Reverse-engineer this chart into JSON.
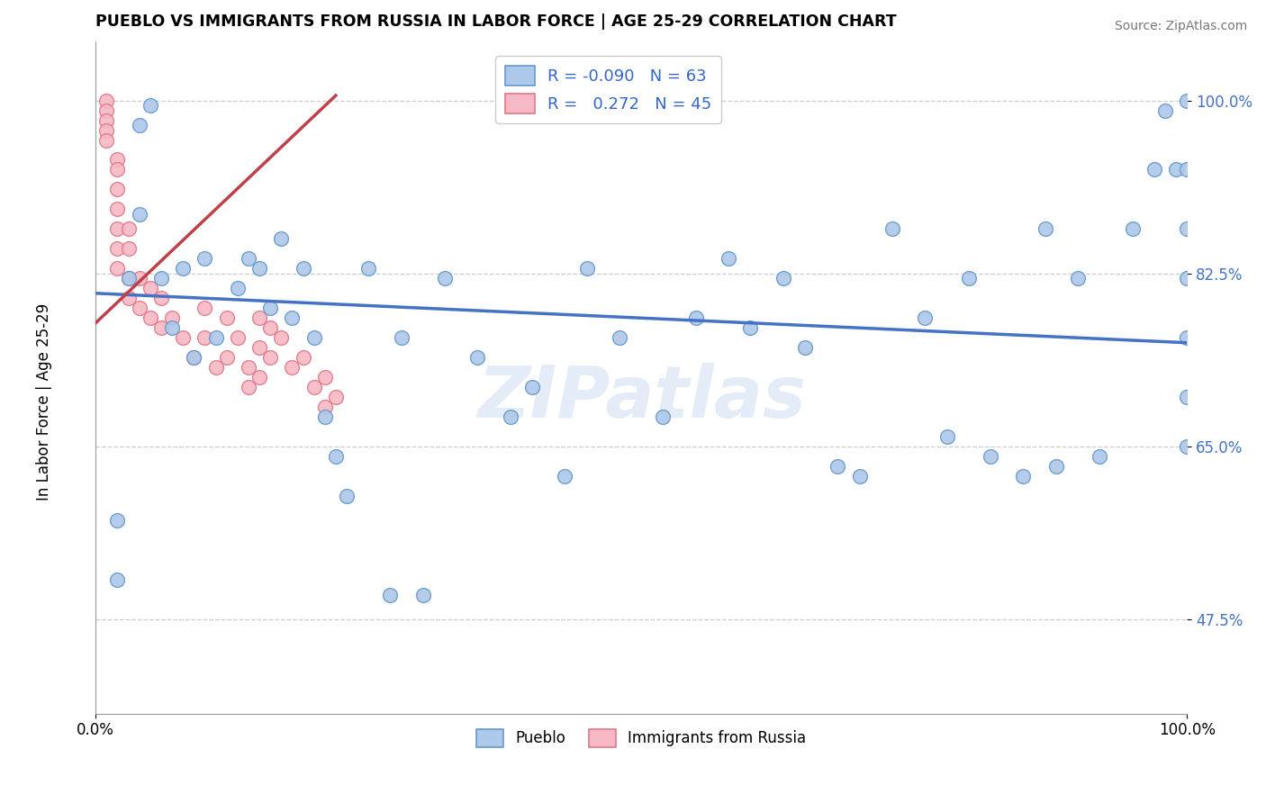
{
  "title": "PUEBLO VS IMMIGRANTS FROM RUSSIA IN LABOR FORCE | AGE 25-29 CORRELATION CHART",
  "source_text": "Source: ZipAtlas.com",
  "ylabel": "In Labor Force | Age 25-29",
  "xmin": 0.0,
  "xmax": 1.0,
  "ymin": 0.38,
  "ymax": 1.06,
  "yticks": [
    0.475,
    0.65,
    0.825,
    1.0
  ],
  "ytick_labels": [
    "47.5%",
    "65.0%",
    "82.5%",
    "100.0%"
  ],
  "watermark": "ZIPatlas",
  "legend_r_blue": "-0.090",
  "legend_n_blue": "63",
  "legend_r_pink": "0.272",
  "legend_n_pink": "45",
  "blue_scatter_color": "#adc8e8",
  "blue_edge_color": "#6699cc",
  "pink_scatter_color": "#f5b8c4",
  "pink_edge_color": "#e07888",
  "blue_line_color": "#4472c4",
  "pink_line_color": "#c0404a",
  "pueblo_x": [
    0.02,
    0.02,
    0.03,
    0.04,
    0.04,
    0.05,
    0.06,
    0.07,
    0.08,
    0.09,
    0.1,
    0.11,
    0.13,
    0.14,
    0.15,
    0.16,
    0.17,
    0.18,
    0.19,
    0.2,
    0.21,
    0.22,
    0.23,
    0.25,
    0.27,
    0.28,
    0.3,
    0.32,
    0.35,
    0.38,
    0.4,
    0.43,
    0.45,
    0.48,
    0.52,
    0.55,
    0.58,
    0.6,
    0.63,
    0.65,
    0.68,
    0.7,
    0.73,
    0.76,
    0.78,
    0.8,
    0.82,
    0.85,
    0.87,
    0.88,
    0.9,
    0.92,
    0.95,
    0.97,
    0.98,
    0.99,
    1.0,
    1.0,
    1.0,
    1.0,
    1.0,
    1.0,
    1.0
  ],
  "pueblo_y": [
    0.575,
    0.515,
    0.82,
    0.885,
    0.975,
    0.995,
    0.82,
    0.77,
    0.83,
    0.74,
    0.84,
    0.76,
    0.81,
    0.84,
    0.83,
    0.79,
    0.86,
    0.78,
    0.83,
    0.76,
    0.68,
    0.64,
    0.6,
    0.83,
    0.5,
    0.76,
    0.5,
    0.82,
    0.74,
    0.68,
    0.71,
    0.62,
    0.83,
    0.76,
    0.68,
    0.78,
    0.84,
    0.77,
    0.82,
    0.75,
    0.63,
    0.62,
    0.87,
    0.78,
    0.66,
    0.82,
    0.64,
    0.62,
    0.87,
    0.63,
    0.82,
    0.64,
    0.87,
    0.93,
    0.99,
    0.93,
    1.0,
    0.93,
    0.87,
    0.82,
    0.76,
    0.7,
    0.65
  ],
  "russia_x": [
    0.01,
    0.01,
    0.01,
    0.01,
    0.01,
    0.02,
    0.02,
    0.02,
    0.02,
    0.02,
    0.02,
    0.02,
    0.03,
    0.03,
    0.03,
    0.03,
    0.04,
    0.04,
    0.05,
    0.05,
    0.06,
    0.06,
    0.07,
    0.08,
    0.09,
    0.1,
    0.1,
    0.11,
    0.12,
    0.12,
    0.13,
    0.14,
    0.14,
    0.15,
    0.15,
    0.15,
    0.16,
    0.16,
    0.17,
    0.18,
    0.19,
    0.2,
    0.21,
    0.21,
    0.22
  ],
  "russia_y": [
    1.0,
    0.99,
    0.98,
    0.97,
    0.96,
    0.94,
    0.93,
    0.91,
    0.89,
    0.87,
    0.85,
    0.83,
    0.87,
    0.85,
    0.82,
    0.8,
    0.82,
    0.79,
    0.81,
    0.78,
    0.8,
    0.77,
    0.78,
    0.76,
    0.74,
    0.79,
    0.76,
    0.73,
    0.78,
    0.74,
    0.76,
    0.73,
    0.71,
    0.78,
    0.75,
    0.72,
    0.77,
    0.74,
    0.76,
    0.73,
    0.74,
    0.71,
    0.72,
    0.69,
    0.7
  ],
  "blue_trend_x0": 0.0,
  "blue_trend_y0": 0.805,
  "blue_trend_x1": 1.0,
  "blue_trend_y1": 0.755,
  "pink_trend_x0": 0.0,
  "pink_trend_y0": 0.775,
  "pink_trend_x1": 0.22,
  "pink_trend_y1": 1.005
}
